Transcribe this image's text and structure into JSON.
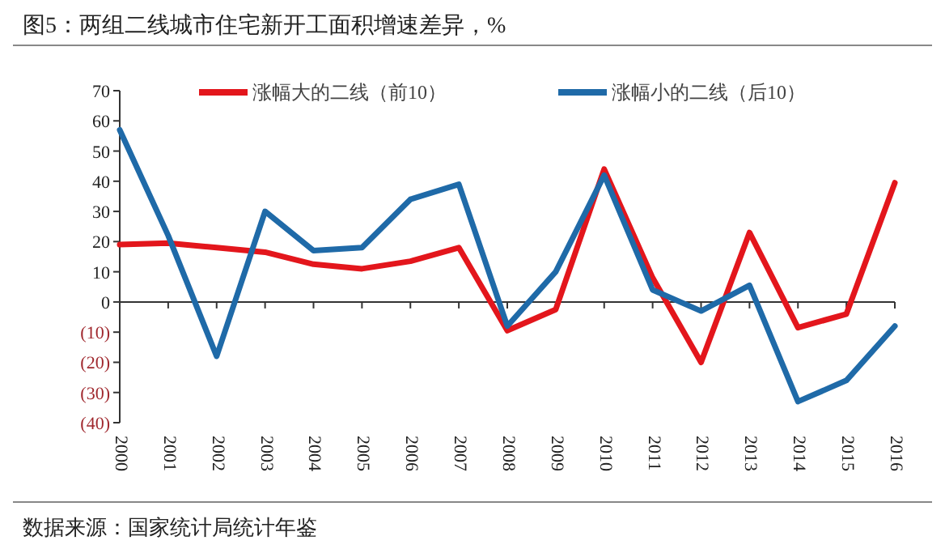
{
  "chart_data": {
    "type": "line",
    "title": "图5：两组二线城市住宅新开工面积增速差异，%",
    "categories": [
      "2000",
      "2001",
      "2002",
      "2003",
      "2004",
      "2005",
      "2006",
      "2007",
      "2008",
      "2009",
      "2010",
      "2011",
      "2012",
      "2013",
      "2014",
      "2015",
      "2016"
    ],
    "series": [
      {
        "name": "涨幅大的二线（前10）",
        "color": "#e3161c",
        "values": [
          19,
          19.5,
          18,
          16.5,
          12.5,
          11,
          13.5,
          18,
          -9.5,
          -2.5,
          44,
          8,
          -20,
          23,
          -8.5,
          -4,
          39.5
        ]
      },
      {
        "name": "涨幅小的二线（后10）",
        "color": "#1f6aa8",
        "values": [
          57,
          22,
          -18,
          30,
          17,
          18,
          34,
          39,
          -8,
          10,
          42,
          4,
          -3,
          5.5,
          -33,
          -26,
          -8
        ]
      }
    ],
    "ylim": [
      -40,
      70
    ],
    "yticks": [
      {
        "value": -40,
        "label": "(40)"
      },
      {
        "value": -30,
        "label": "(30)"
      },
      {
        "value": -20,
        "label": "(20)"
      },
      {
        "value": -10,
        "label": "(10)"
      },
      0,
      10,
      20,
      30,
      40,
      50,
      60,
      70
    ],
    "legend": "top",
    "marker": "none",
    "line_style": "solid",
    "annotations": [
      "数据来源：国家统计局统计年鉴"
    ]
  }
}
